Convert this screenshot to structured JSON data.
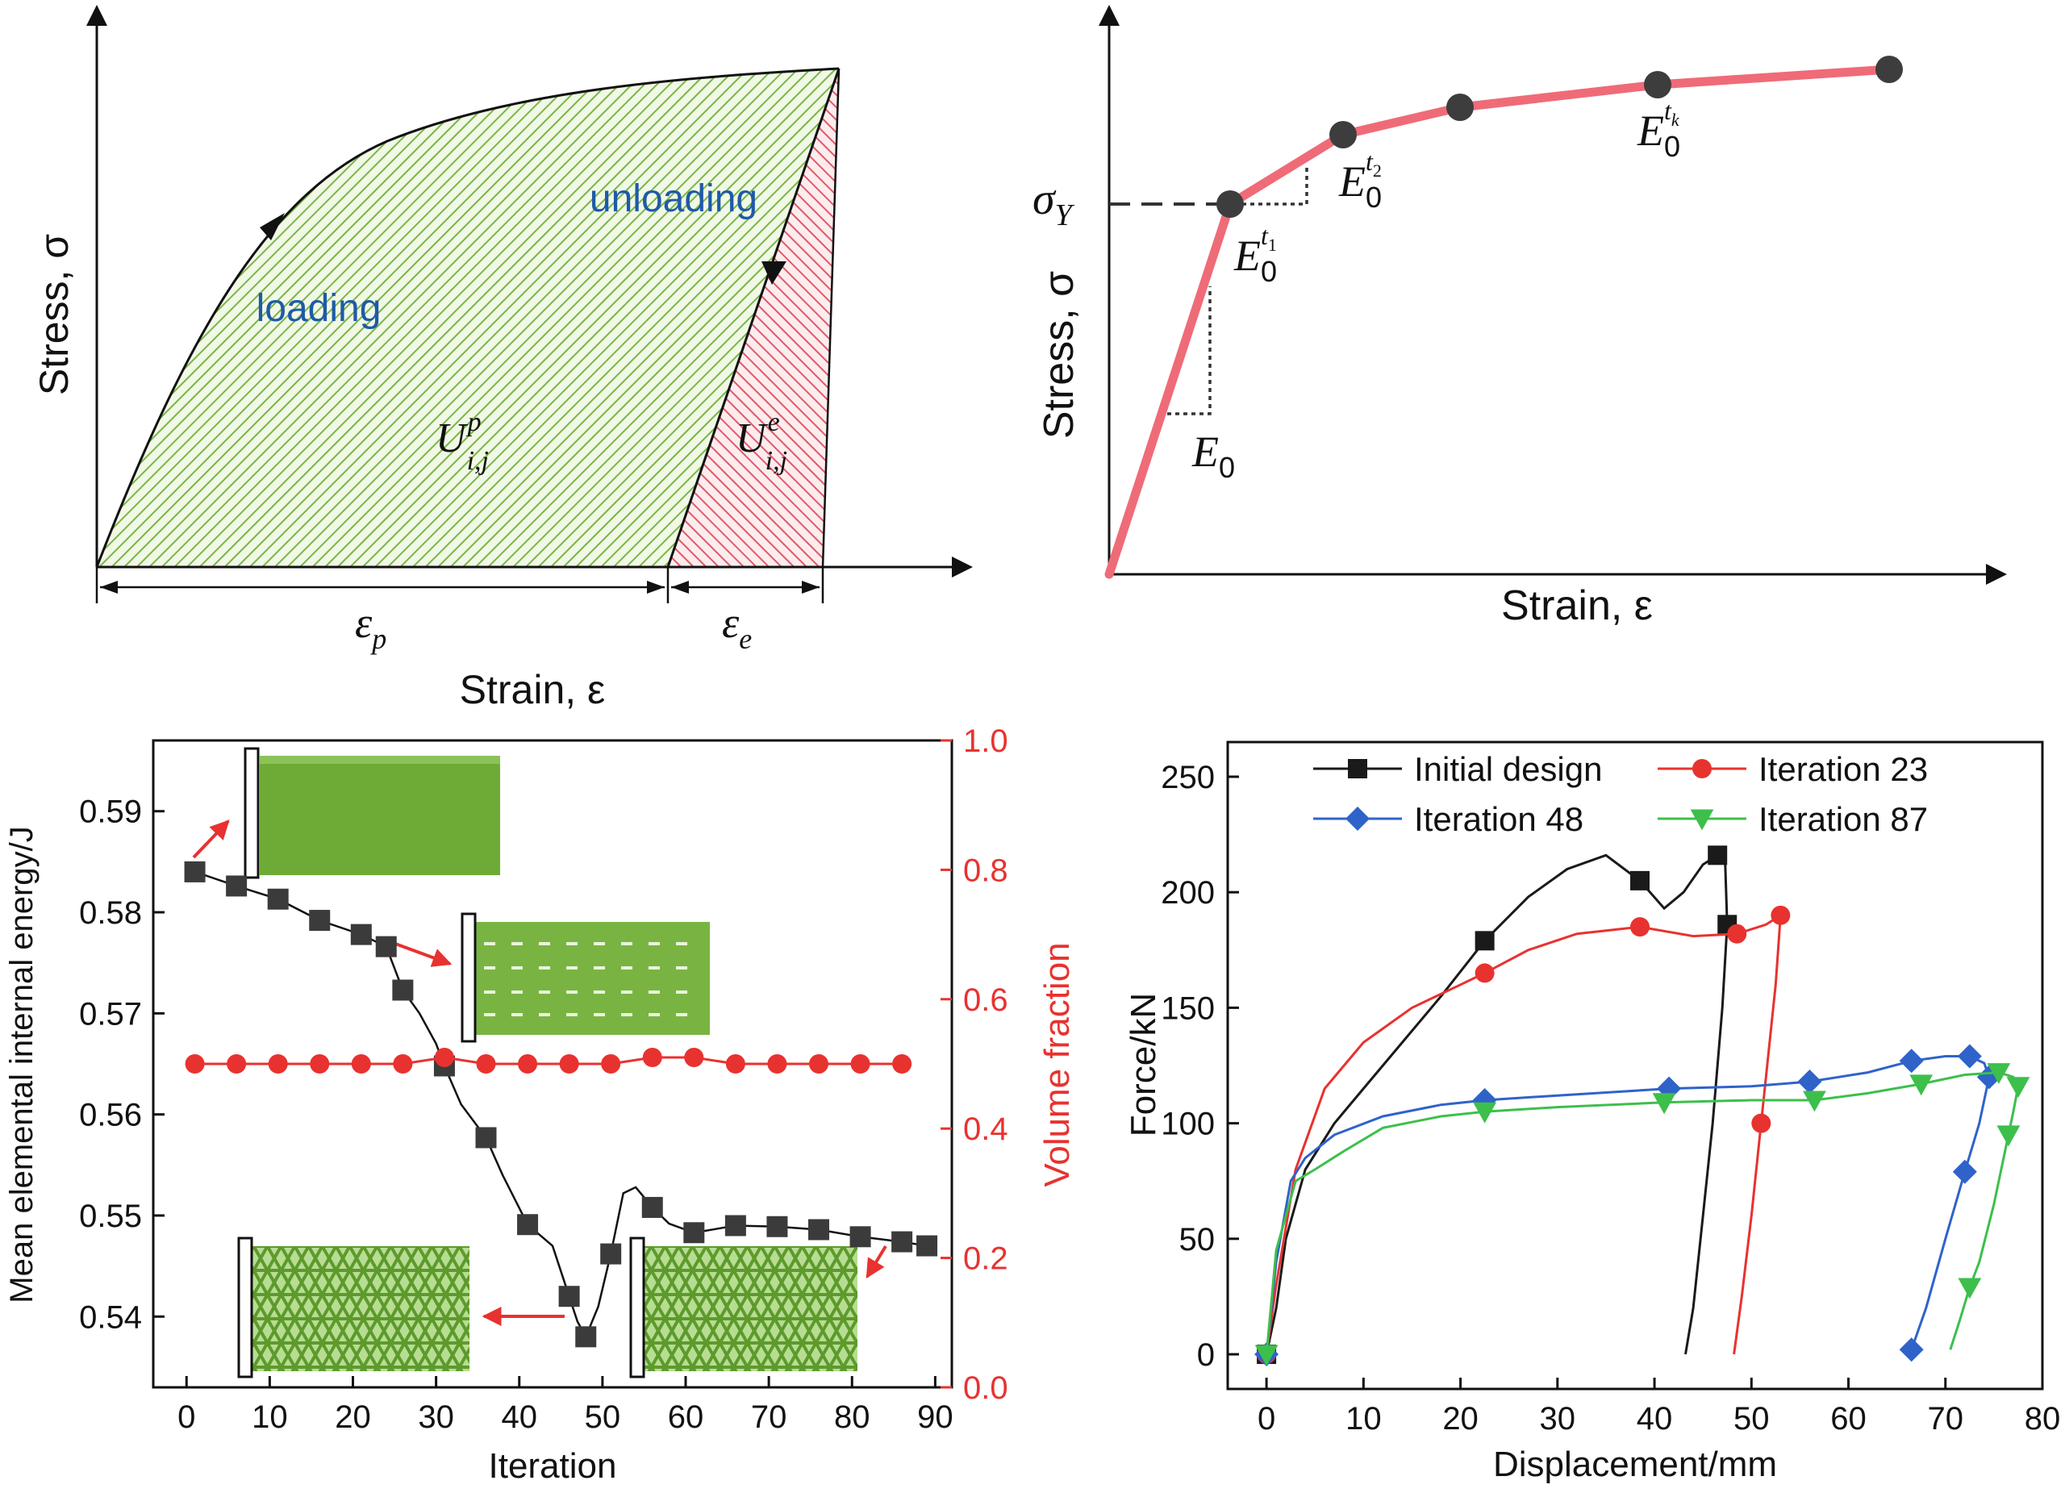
{
  "panel_a": {
    "ylabel": "Stress, σ",
    "xlabel": "Strain, ε",
    "loading_label": "loading",
    "unloading_label": "unloading",
    "plastic_energy_label": "U",
    "plastic_energy_sup": "p",
    "plastic_energy_sub": "i,j",
    "elastic_energy_label": "U",
    "elastic_energy_sup": "e",
    "elastic_energy_sub": "i,j",
    "plastic_strain_label": "ε",
    "plastic_strain_sub": "p",
    "elastic_strain_label": "ε",
    "elastic_strain_sub": "e",
    "colors": {
      "plastic_hatch": "#7ab648",
      "elastic_hatch": "#e05a6a",
      "label_blue": "#1e5aa8"
    }
  },
  "panel_b": {
    "ylabel": "Stress, σ",
    "xlabel": "Strain, ε",
    "yield_label": "σ",
    "yield_sub": "Y",
    "e0_label": "E",
    "e0_sub": "0",
    "t1_label": "E",
    "t1_sub": "0",
    "t1_sup": "t",
    "t1_supsub": "1",
    "t2_label": "E",
    "t2_sub": "0",
    "t2_sup": "t",
    "t2_supsub": "2",
    "tk_label": "E",
    "tk_sub": "0",
    "tk_sup": "t",
    "tk_supsub": "k",
    "colors": {
      "curve": "#ef6b78",
      "point": "#3d3d3d"
    }
  },
  "chart_data": [
    {
      "type": "line",
      "title": "",
      "xlabel": "Iteration",
      "ylabel": "Mean elemental internal energy/J",
      "ylabel_right": "Volume fraction",
      "xlim": [
        -4,
        92
      ],
      "ylim": [
        0.533,
        0.597
      ],
      "ylim_right": [
        0.0,
        1.0
      ],
      "x_ticks": [
        0,
        10,
        20,
        30,
        40,
        50,
        60,
        70,
        80,
        90
      ],
      "y_ticks": [
        0.54,
        0.55,
        0.56,
        0.57,
        0.58,
        0.59
      ],
      "y_tick_labels": [
        "0.54",
        "0.55",
        "0.56",
        "0.57",
        "0.58",
        "0.59"
      ],
      "y_ticks_right": [
        0.0,
        0.2,
        0.4,
        0.6,
        0.8,
        1.0
      ],
      "y_tick_labels_right": [
        "0.0",
        "0.2",
        "0.4",
        "0.6",
        "0.8",
        "1.0"
      ],
      "grid": false,
      "series": [
        {
          "axis": "left",
          "color": "#3b3b3b",
          "marker": "square",
          "x": [
            1,
            6,
            11,
            16,
            21,
            24,
            26,
            31,
            36,
            41,
            46,
            48,
            51,
            56,
            61,
            66,
            71,
            76,
            81,
            86,
            89
          ],
          "values": [
            0.584,
            0.5826,
            0.5813,
            0.5792,
            0.5778,
            0.5766,
            0.5723,
            0.5648,
            0.5577,
            0.5491,
            0.542,
            0.538,
            0.5462,
            0.5508,
            0.5483,
            0.549,
            0.5489,
            0.5486,
            0.5479,
            0.5474,
            0.547
          ],
          "curve_x": [
            1,
            6,
            11,
            16,
            21,
            24,
            26,
            28,
            30,
            31,
            33,
            36,
            38,
            41,
            44,
            46,
            47,
            48,
            49.5,
            51,
            52.5,
            54,
            56,
            58,
            61,
            66,
            71,
            76,
            81,
            86,
            89
          ],
          "curve_y": [
            0.584,
            0.5826,
            0.5813,
            0.5792,
            0.5778,
            0.5766,
            0.5723,
            0.57,
            0.567,
            0.5648,
            0.561,
            0.5577,
            0.554,
            0.5491,
            0.547,
            0.542,
            0.5395,
            0.538,
            0.541,
            0.5462,
            0.5522,
            0.5528,
            0.5508,
            0.5492,
            0.5483,
            0.549,
            0.5489,
            0.5486,
            0.5479,
            0.5474,
            0.547
          ]
        },
        {
          "axis": "right",
          "color": "#e8322f",
          "marker": "circle",
          "x": [
            1,
            6,
            11,
            16,
            21,
            26,
            31,
            36,
            41,
            46,
            51,
            56,
            61,
            66,
            71,
            76,
            81,
            86
          ],
          "values": [
            0.5,
            0.5,
            0.5,
            0.5,
            0.5,
            0.5,
            0.51,
            0.5,
            0.5,
            0.5,
            0.5,
            0.51,
            0.51,
            0.5,
            0.5,
            0.5,
            0.5,
            0.5
          ]
        }
      ]
    },
    {
      "type": "line",
      "title": "",
      "xlabel": "Displacement/mm",
      "ylabel": "Force/kN",
      "xlim": [
        -4,
        80
      ],
      "ylim": [
        -15,
        265
      ],
      "x_ticks": [
        0,
        10,
        20,
        30,
        40,
        50,
        60,
        70,
        80
      ],
      "y_ticks": [
        0,
        50,
        100,
        150,
        200,
        250
      ],
      "grid": false,
      "legend": "top",
      "series": [
        {
          "name": "Initial design",
          "color": "#1a1a1a",
          "marker": "square",
          "marker_x": [
            0,
            22.5,
            38.5,
            46.5,
            47.5
          ],
          "marker_y": [
            0,
            179,
            205,
            216,
            186
          ],
          "curve_x": [
            0,
            1,
            2,
            4,
            7,
            10,
            14,
            18,
            22.5,
            27,
            31,
            35,
            38.5,
            41,
            43,
            45,
            46.5,
            47.3,
            47.5,
            47,
            46,
            45,
            44,
            43.2
          ],
          "curve_y": [
            0,
            20,
            50,
            80,
            100,
            115,
            135,
            155,
            179,
            198,
            210,
            216,
            205,
            193,
            200,
            212,
            216,
            212,
            186,
            150,
            100,
            60,
            20,
            0
          ]
        },
        {
          "name": "Iteration 23",
          "color": "#e8322f",
          "marker": "circle",
          "marker_x": [
            0,
            22.5,
            38.5,
            48.5,
            53,
            51
          ],
          "marker_y": [
            0,
            165,
            185,
            182,
            190,
            100
          ],
          "curve_x": [
            0,
            1,
            3,
            6,
            10,
            15,
            20,
            22.5,
            27,
            32,
            38.5,
            44,
            48.5,
            51.5,
            53,
            52.5,
            51.5,
            51,
            50,
            49,
            48.2
          ],
          "curve_y": [
            0,
            30,
            80,
            115,
            135,
            150,
            160,
            165,
            175,
            182,
            185,
            181,
            182,
            186,
            190,
            160,
            120,
            100,
            60,
            25,
            0
          ]
        },
        {
          "name": "Iteration 48",
          "color": "#2f63c9",
          "marker": "diamond",
          "marker_x": [
            0,
            22.5,
            41.5,
            56,
            66.5,
            72.5,
            74.5,
            72,
            66.5
          ],
          "marker_y": [
            0,
            110,
            115,
            118,
            127,
            129,
            120,
            79,
            2
          ],
          "curve_x": [
            0,
            1,
            2.5,
            4,
            7,
            12,
            18,
            22.5,
            30,
            41.5,
            50,
            56,
            62,
            66.5,
            70,
            72.5,
            74,
            74.5,
            73.5,
            72,
            70,
            68,
            66.5
          ],
          "curve_y": [
            0,
            40,
            75,
            85,
            95,
            103,
            108,
            110,
            112,
            115,
            116,
            118,
            122,
            127,
            129,
            129,
            126,
            120,
            100,
            79,
            50,
            20,
            2
          ]
        },
        {
          "name": "Iteration 87",
          "color": "#3dbf4c",
          "marker": "triangle-down",
          "marker_x": [
            0,
            22.5,
            41,
            56.5,
            67.5,
            75.5,
            77.5,
            76.5,
            72.5
          ],
          "marker_y": [
            0,
            105,
            109,
            110,
            117,
            122,
            116,
            95,
            29
          ],
          "curve_x": [
            0,
            1,
            3,
            5,
            8,
            12,
            18,
            22.5,
            30,
            41,
            50,
            56.5,
            62,
            67.5,
            72,
            75.5,
            77,
            77.5,
            77,
            76.5,
            75,
            73.5,
            72.5,
            71.5,
            70.5
          ],
          "curve_y": [
            0,
            45,
            75,
            80,
            88,
            98,
            103,
            105,
            107,
            109,
            110,
            110,
            113,
            117,
            121,
            122,
            120,
            116,
            105,
            95,
            65,
            40,
            29,
            15,
            2
          ]
        }
      ]
    }
  ]
}
